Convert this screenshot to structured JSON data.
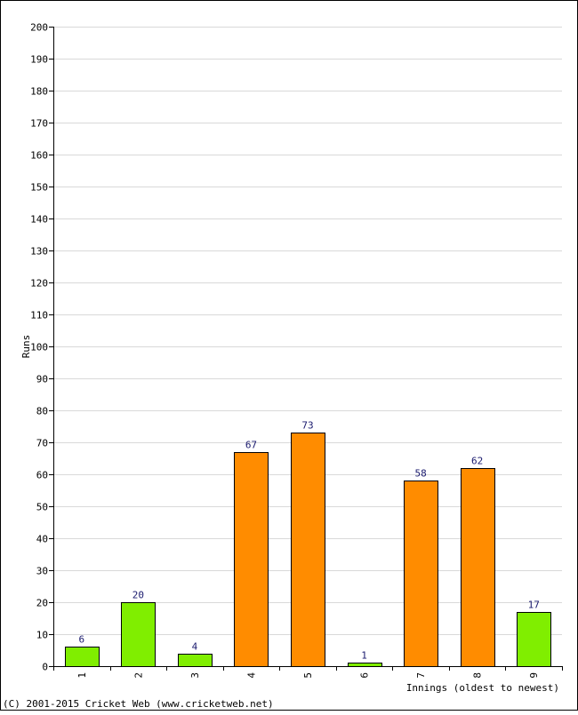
{
  "chart_data": {
    "type": "bar",
    "categories": [
      "1",
      "2",
      "3",
      "4",
      "5",
      "6",
      "7",
      "8",
      "9"
    ],
    "values": [
      6,
      20,
      4,
      67,
      73,
      1,
      58,
      62,
      17
    ],
    "bar_colors": [
      "#80ee00",
      "#80ee00",
      "#80ee00",
      "#ff8c00",
      "#ff8c00",
      "#80ee00",
      "#ff8c00",
      "#ff8c00",
      "#80ee00"
    ],
    "title": "",
    "xlabel": "Innings (oldest to newest)",
    "ylabel": "Runs",
    "ylim": [
      0,
      200
    ],
    "ytick_step": 10,
    "grid": true,
    "legend": "none",
    "label_color": "#1a1a6e",
    "grid_color": "#d9d9d9"
  },
  "footer": {
    "copyright": "(C) 2001-2015 Cricket Web (www.cricketweb.net)"
  }
}
